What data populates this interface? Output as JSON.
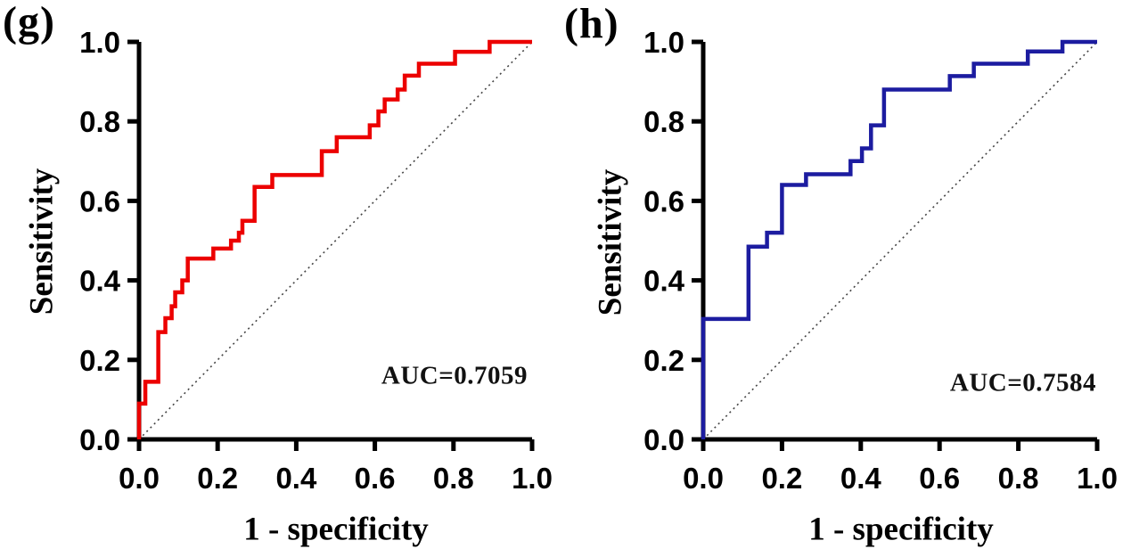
{
  "figure": {
    "type": "roc-curve-comparison",
    "background": "#ffffff",
    "axis_color": "#000000",
    "reference_line_color": "#444444"
  },
  "chart_data": [
    {
      "type": "line",
      "subtype": "roc_step_curve",
      "panel_label": "(g)",
      "xlabel": "1 - specificity",
      "ylabel": "Sensitivity",
      "auc": 0.7059,
      "auc_label": "AUC=0.7059",
      "curve_color": "#EC0000",
      "xlim": [
        0.0,
        1.0
      ],
      "ylim": [
        0.0,
        1.0
      ],
      "xticks": [
        0.0,
        0.2,
        0.4,
        0.6,
        0.8,
        1.0
      ],
      "yticks": [
        0.0,
        0.2,
        0.4,
        0.6,
        0.8,
        1.0
      ],
      "xtick_labels": [
        "0.0",
        "0.2",
        "0.4",
        "0.6",
        "0.8",
        "1.0"
      ],
      "ytick_labels": [
        "0.0",
        "0.2",
        "0.4",
        "0.6",
        "0.8",
        "1.0"
      ],
      "grid": false,
      "legend": "none",
      "reference_line": "diagonal dotted from (0,0) to (1,1)",
      "roc_points": [
        [
          0.0,
          0.0
        ],
        [
          0.0,
          0.09
        ],
        [
          0.016,
          0.145
        ],
        [
          0.049,
          0.27
        ],
        [
          0.067,
          0.305
        ],
        [
          0.083,
          0.335
        ],
        [
          0.092,
          0.37
        ],
        [
          0.11,
          0.4
        ],
        [
          0.124,
          0.455
        ],
        [
          0.189,
          0.48
        ],
        [
          0.234,
          0.5
        ],
        [
          0.254,
          0.52
        ],
        [
          0.263,
          0.55
        ],
        [
          0.294,
          0.635
        ],
        [
          0.339,
          0.665
        ],
        [
          0.465,
          0.725
        ],
        [
          0.503,
          0.76
        ],
        [
          0.587,
          0.79
        ],
        [
          0.609,
          0.825
        ],
        [
          0.625,
          0.855
        ],
        [
          0.658,
          0.88
        ],
        [
          0.676,
          0.915
        ],
        [
          0.712,
          0.945
        ],
        [
          0.804,
          0.975
        ],
        [
          0.892,
          1.0
        ],
        [
          1.0,
          1.0
        ]
      ]
    },
    {
      "type": "line",
      "subtype": "roc_step_curve",
      "panel_label": "(h)",
      "xlabel": "1 - specificity",
      "ylabel": "Sensitivity",
      "auc": 0.7584,
      "auc_label": "AUC=0.7584",
      "curve_color": "#1C1CA0",
      "xlim": [
        0.0,
        1.0
      ],
      "ylim": [
        0.0,
        1.0
      ],
      "xticks": [
        0.0,
        0.2,
        0.4,
        0.6,
        0.8,
        1.0
      ],
      "yticks": [
        0.0,
        0.2,
        0.4,
        0.6,
        0.8,
        1.0
      ],
      "xtick_labels": [
        "0.0",
        "0.2",
        "0.4",
        "0.6",
        "0.8",
        "1.0"
      ],
      "ytick_labels": [
        "0.0",
        "0.2",
        "0.4",
        "0.6",
        "0.8",
        "1.0"
      ],
      "grid": false,
      "legend": "none",
      "reference_line": "diagonal dotted from (0,0) to (1,1)",
      "roc_points": [
        [
          0.0,
          0.0
        ],
        [
          0.0,
          0.303
        ],
        [
          0.115,
          0.485
        ],
        [
          0.162,
          0.52
        ],
        [
          0.2,
          0.64
        ],
        [
          0.261,
          0.667
        ],
        [
          0.374,
          0.7
        ],
        [
          0.403,
          0.732
        ],
        [
          0.426,
          0.79
        ],
        [
          0.459,
          0.88
        ],
        [
          0.626,
          0.914
        ],
        [
          0.687,
          0.945
        ],
        [
          0.824,
          0.976
        ],
        [
          0.912,
          1.0
        ],
        [
          1.0,
          1.0
        ]
      ]
    }
  ]
}
